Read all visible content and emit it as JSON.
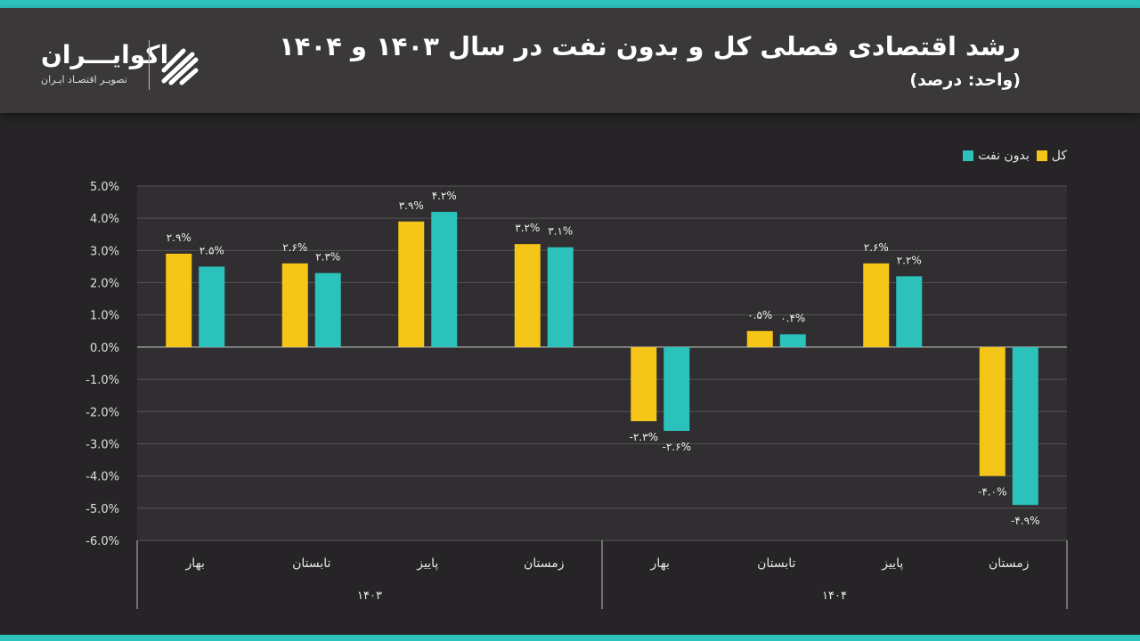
{
  "header": {
    "title": "رشد اقتصادی فصلی کل و بدون نفت در سال ۱۴۰۳ و ۱۴۰۴",
    "subtitle": "(واحد: درصد)",
    "logo_name": "اکوایـــران",
    "logo_tagline": "تصویـر اقتصـاد ایـران"
  },
  "colors": {
    "total": "#f5c518",
    "non_oil": "#2cc2bc",
    "accent": "#2cc2bc"
  },
  "icons": {
    "logo": "ecoiran-logo-icon"
  },
  "chart_data": {
    "type": "bar",
    "title": "رشد اقتصادی فصلی کل و بدون نفت در سال ۱۴۰۳ و ۱۴۰۴",
    "ylabel": "",
    "xlabel": "",
    "ylim": [
      -6,
      5
    ],
    "yticks": [
      5,
      4,
      3,
      2,
      1,
      0,
      -1,
      -2,
      -3,
      -4,
      -5,
      -6
    ],
    "ytick_labels": [
      "5.0%",
      "4.0%",
      "3.0%",
      "2.0%",
      "1.0%",
      "0.0%",
      "-1.0%",
      "-2.0%",
      "-3.0%",
      "-4.0%",
      "-5.0%",
      "-6.0%"
    ],
    "grid": true,
    "legend_position": "top-right",
    "categories": [
      "بهار",
      "تابستان",
      "پاییز",
      "زمستان",
      "بهار",
      "تابستان",
      "پاییز",
      "زمستان"
    ],
    "groups": [
      {
        "label": "۱۴۰۳",
        "categories": [
          "بهار",
          "تابستان",
          "پاییز",
          "زمستان"
        ]
      },
      {
        "label": "۱۴۰۴",
        "categories": [
          "بهار",
          "تابستان",
          "پاییز",
          "زمستان"
        ]
      }
    ],
    "series": [
      {
        "name": "کل",
        "color": "#f5c518",
        "values": [
          2.9,
          2.6,
          3.9,
          3.2,
          -2.3,
          0.5,
          2.6,
          -4.0
        ],
        "labels": [
          "۲.۹%",
          "۲.۶%",
          "۳.۹%",
          "۳.۲%",
          "-۲.۳%",
          "۰.۵%",
          "۲.۶%",
          "-۴.۰%"
        ]
      },
      {
        "name": "بدون نفت",
        "color": "#2cc2bc",
        "values": [
          2.5,
          2.3,
          4.2,
          3.1,
          -2.6,
          0.4,
          2.2,
          -4.9
        ],
        "labels": [
          "۲.۵%",
          "۲.۳%",
          "۴.۲%",
          "۳.۱%",
          "-۲.۶%",
          "۰.۴%",
          "۲.۲%",
          "-۴.۹%"
        ]
      }
    ]
  }
}
